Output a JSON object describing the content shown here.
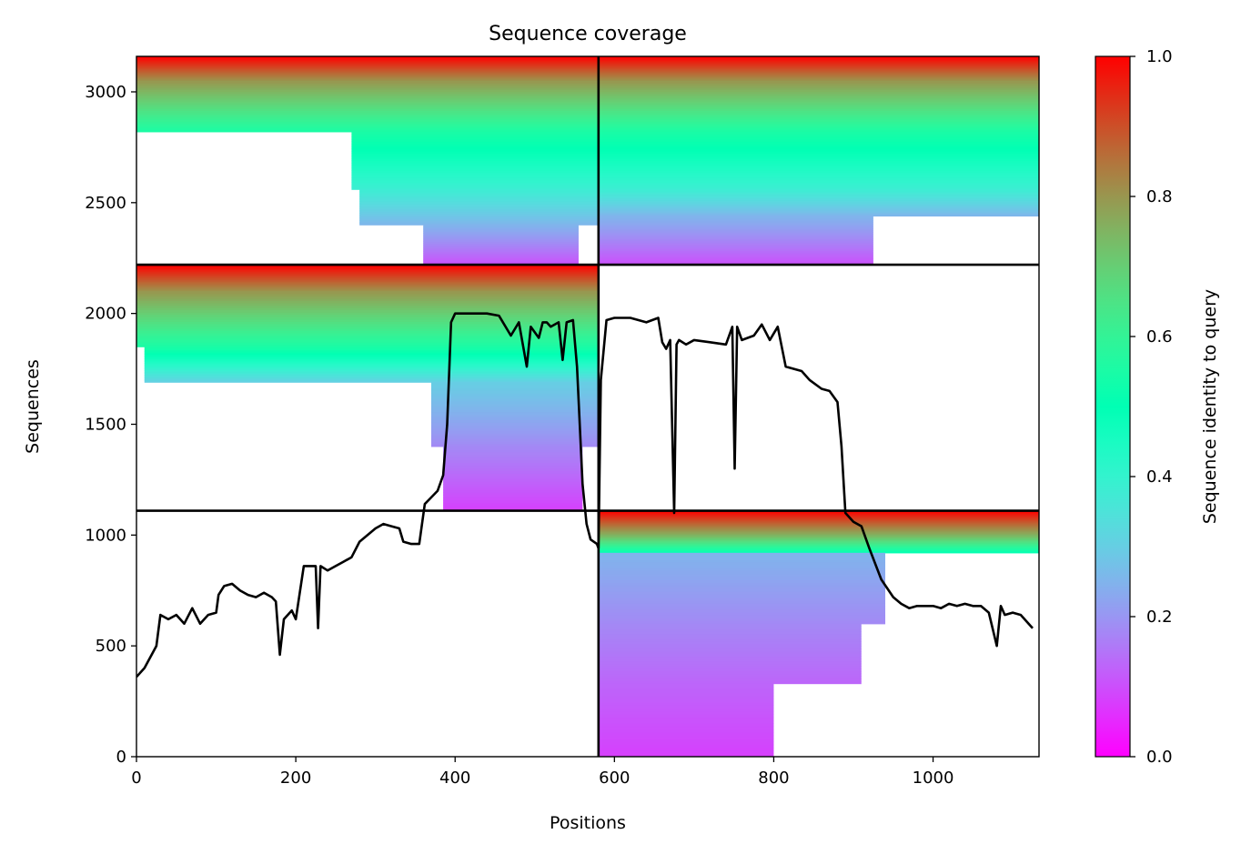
{
  "chart_data": {
    "type": "heatmap",
    "title": "Sequence coverage",
    "xlabel": "Positions",
    "ylabel": "Sequences",
    "xlim": [
      0,
      1133
    ],
    "ylim": [
      0,
      3160
    ],
    "x_ticks": [
      0,
      200,
      400,
      600,
      800,
      1000
    ],
    "y_ticks": [
      0,
      500,
      1000,
      1500,
      2000,
      2500,
      3000
    ],
    "colorbar": {
      "label": "Sequence identity to query",
      "range": [
        0.0,
        1.0
      ],
      "ticks": [
        "0.0",
        "0.2",
        "0.4",
        "0.6",
        "0.8",
        "1.0"
      ],
      "colormap": "rainbow"
    },
    "grid": false,
    "chain_boundaries": {
      "position": 580,
      "sequence_boundaries": [
        1110,
        2220
      ]
    },
    "blocks": [
      {
        "name": "block-1",
        "x_range": [
          0,
          580
        ],
        "y_range": [
          2220,
          3160
        ],
        "rows": [
          {
            "y": [
              3050,
              3160
            ],
            "x": [
              0,
              580
            ],
            "identity": [
              0.8,
              1.0
            ]
          },
          {
            "y": [
              2820,
              3050
            ],
            "x": [
              0,
              580
            ],
            "identity": [
              0.55,
              0.8
            ]
          },
          {
            "y": [
              2560,
              2820
            ],
            "x": [
              270,
              580
            ],
            "identity": [
              0.38,
              0.55
            ]
          },
          {
            "y": [
              2400,
              2560
            ],
            "x": [
              280,
              580
            ],
            "identity": [
              0.25,
              0.38
            ]
          },
          {
            "y": [
              2220,
              2400
            ],
            "x": [
              360,
              555
            ],
            "identity": [
              0.1,
              0.25
            ]
          }
        ]
      },
      {
        "name": "block-2",
        "x_range": [
          580,
          1133
        ],
        "y_range": [
          2220,
          3160
        ],
        "rows": [
          {
            "y": [
              3050,
              3160
            ],
            "x": [
              580,
              1133
            ],
            "identity": [
              0.8,
              1.0
            ]
          },
          {
            "y": [
              2820,
              3050
            ],
            "x": [
              580,
              1133
            ],
            "identity": [
              0.55,
              0.8
            ]
          },
          {
            "y": [
              2560,
              2820
            ],
            "x": [
              580,
              1133
            ],
            "identity": [
              0.38,
              0.55
            ]
          },
          {
            "y": [
              2440,
              2560
            ],
            "x": [
              580,
              1133
            ],
            "identity": [
              0.25,
              0.38
            ]
          },
          {
            "y": [
              2220,
              2440
            ],
            "x": [
              580,
              925
            ],
            "identity": [
              0.1,
              0.25
            ]
          }
        ]
      },
      {
        "name": "block-3",
        "x_range": [
          0,
          580
        ],
        "y_range": [
          1110,
          2220
        ],
        "rows": [
          {
            "y": [
              2100,
              2220
            ],
            "x": [
              0,
              580
            ],
            "identity": [
              0.8,
              1.0
            ]
          },
          {
            "y": [
              1850,
              2100
            ],
            "x": [
              0,
              580
            ],
            "identity": [
              0.55,
              0.8
            ]
          },
          {
            "y": [
              1690,
              1850
            ],
            "x": [
              10,
              580
            ],
            "identity": [
              0.3,
              0.55
            ]
          },
          {
            "y": [
              1400,
              1690
            ],
            "x": [
              370,
              580
            ],
            "identity": [
              0.18,
              0.3
            ]
          },
          {
            "y": [
              1110,
              1400
            ],
            "x": [
              385,
              560
            ],
            "identity": [
              0.08,
              0.18
            ]
          }
        ]
      },
      {
        "name": "block-4",
        "x_range": [
          580,
          1133
        ],
        "y_range": [
          0,
          1110
        ],
        "rows": [
          {
            "y": [
              1000,
              1110
            ],
            "x": [
              580,
              1133
            ],
            "identity": [
              0.75,
              1.0
            ]
          },
          {
            "y": [
              920,
              1000
            ],
            "x": [
              580,
              1133
            ],
            "identity": [
              0.5,
              0.75
            ]
          },
          {
            "y": [
              600,
              920
            ],
            "x": [
              580,
              940
            ],
            "identity": [
              0.18,
              0.25
            ]
          },
          {
            "y": [
              330,
              600
            ],
            "x": [
              580,
              910
            ],
            "identity": [
              0.13,
              0.18
            ]
          },
          {
            "y": [
              0,
              330
            ],
            "x": [
              580,
              800
            ],
            "identity": [
              0.08,
              0.13
            ]
          }
        ]
      }
    ],
    "coverage_line": {
      "name": "coverage",
      "color": "#000000",
      "x": [
        0,
        10,
        25,
        30,
        40,
        50,
        60,
        70,
        80,
        90,
        100,
        103,
        110,
        120,
        130,
        140,
        150,
        160,
        170,
        175,
        180,
        185,
        195,
        200,
        210,
        225,
        228,
        231,
        240,
        250,
        260,
        270,
        280,
        300,
        310,
        320,
        330,
        335,
        345,
        355,
        362,
        370,
        378,
        385,
        390,
        395,
        400,
        420,
        440,
        455,
        470,
        480,
        490,
        495,
        505,
        510,
        515,
        520,
        530,
        535,
        540,
        548,
        553,
        560,
        565,
        570,
        578,
        580,
        583,
        590,
        600,
        620,
        640,
        655,
        660,
        665,
        670,
        675,
        678,
        681,
        690,
        700,
        720,
        740,
        748,
        751,
        754,
        760,
        775,
        785,
        795,
        805,
        815,
        835,
        845,
        860,
        870,
        880,
        885,
        890,
        900,
        910,
        920,
        935,
        950,
        960,
        970,
        980,
        990,
        1000,
        1010,
        1020,
        1030,
        1040,
        1050,
        1060,
        1070,
        1080,
        1085,
        1090,
        1100,
        1110,
        1125,
        1133
      ],
      "y": [
        360,
        400,
        500,
        640,
        620,
        640,
        600,
        670,
        600,
        640,
        650,
        730,
        770,
        780,
        750,
        730,
        720,
        740,
        720,
        700,
        460,
        620,
        660,
        620,
        860,
        860,
        580,
        860,
        840,
        860,
        880,
        900,
        970,
        1030,
        1050,
        1040,
        1030,
        970,
        960,
        960,
        1140,
        1170,
        1200,
        1270,
        1500,
        1960,
        2000,
        2000,
        2000,
        1990,
        1900,
        1960,
        1760,
        1940,
        1890,
        1960,
        1960,
        1940,
        1960,
        1790,
        1960,
        1970,
        1760,
        1230,
        1050,
        980,
        960,
        940,
        1700,
        1970,
        1980,
        1980,
        1960,
        1980,
        1870,
        1840,
        1880,
        1100,
        1860,
        1880,
        1860,
        1880,
        1870,
        1860,
        1940,
        1300,
        1940,
        1880,
        1900,
        1950,
        1880,
        1940,
        1760,
        1740,
        1700,
        1660,
        1650,
        1600,
        1400,
        1100,
        1060,
        1040,
        940,
        800,
        720,
        690,
        670,
        680,
        680,
        680,
        670,
        690,
        680,
        690,
        680,
        680,
        650,
        500,
        680,
        640,
        650,
        640,
        580
      ]
    }
  }
}
